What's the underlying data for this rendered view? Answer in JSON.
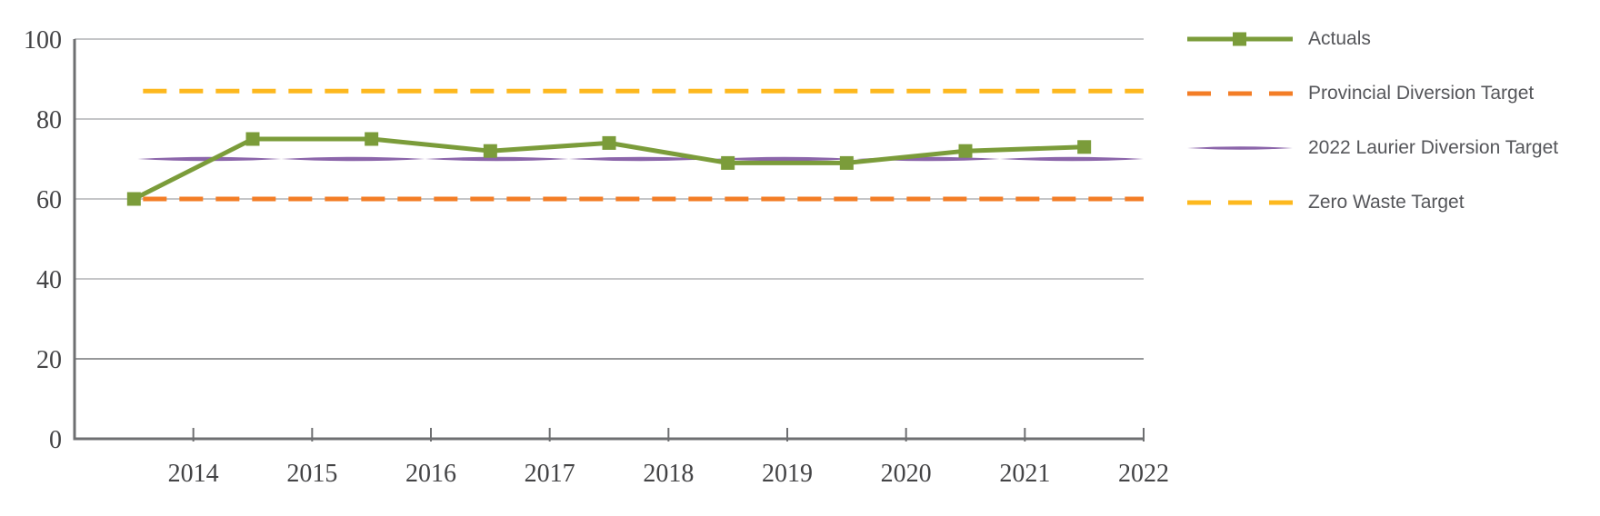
{
  "chart_data": {
    "type": "line",
    "title": "",
    "xlabel": "",
    "ylabel": "",
    "x_tick_labels": [
      "2014",
      "2015",
      "2016",
      "2017",
      "2018",
      "2019",
      "2020",
      "2021",
      "2022"
    ],
    "y_tick_labels": [
      "0",
      "20",
      "40",
      "60",
      "80",
      "100"
    ],
    "y_ticks": [
      0,
      20,
      40,
      60,
      80,
      100
    ],
    "ylim": [
      0,
      100
    ],
    "grid": "horizontal",
    "legend_position": "right",
    "series": [
      {
        "name": "Actuals",
        "type": "line",
        "marker": "square",
        "color": "#7B9C3A",
        "values": [
          60,
          75,
          75,
          72,
          74,
          69,
          69,
          72,
          73
        ]
      },
      {
        "name": "Provincial Diversion Target",
        "type": "dashed-line",
        "color": "#F37D26",
        "constant_value": 60
      },
      {
        "name": "2022 Laurier Diversion Target",
        "type": "tapered-line",
        "color": "#8B65AA",
        "constant_value": 70
      },
      {
        "name": "Zero Waste Target",
        "type": "dashed-line",
        "color": "#FDB81E",
        "constant_value": 87
      }
    ]
  }
}
